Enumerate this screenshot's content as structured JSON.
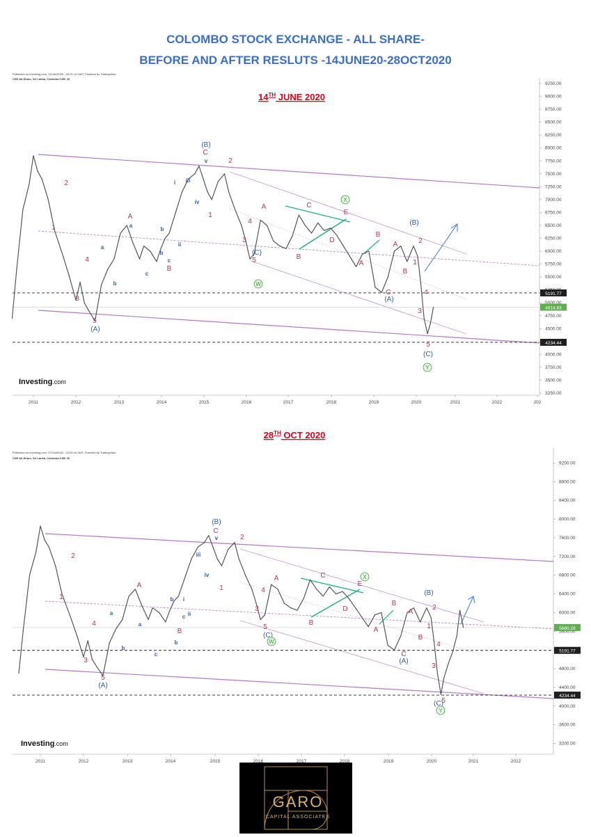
{
  "header": {
    "title_line1": "COLOMBO STOCK EXCHANGE - ALL SHARE-",
    "title_line2": "BEFORE AND AFTER RESLUTS -14JUNE20-28OCT2020"
  },
  "colors": {
    "title": "#3b6fc6",
    "date_label": "#e0001b",
    "channel": "#a55fc0",
    "wave_blue": "#2e5fa8",
    "wave_red": "#b3345a",
    "wave_green": "#3b9b3b",
    "triangle": "#1fae8a",
    "arrow": "#5b8fd0",
    "price": "#555555"
  },
  "logo": {
    "name": "GARO",
    "subtitle": "CAPITAL ASSOCIATES",
    "icon": "golden-spiral-icon"
  },
  "chart_data": [
    {
      "type": "line",
      "date_label": "14",
      "date_label_sup": "TH",
      "date_label_rest": " JUNE 2020",
      "published": "Published on Investing.com, 13/Jun/2020 - 20:31:14 GMT, Powered by TradingView",
      "instrument": "CSE All-Share, Sri Lanka, Colombo:CSE, W",
      "watermark": "Investing",
      "watermark_suffix": ".com",
      "x_ticks": [
        "2011",
        "2012",
        "2013",
        "2014",
        "2015",
        "2016",
        "2017",
        "2018",
        "2019",
        "2020",
        "2021",
        "2022",
        "202"
      ],
      "y_ticks": [
        "9250.00",
        "9000.00",
        "8750.00",
        "8500.00",
        "8250.00",
        "8000.00",
        "7750.00",
        "7500.00",
        "7250.00",
        "7000.00",
        "6750.00",
        "6500.00",
        "6250.00",
        "6000.00",
        "5750.00",
        "5500.00",
        "5250.00",
        "5000.00",
        "4750.00",
        "4500.00",
        "4250.00",
        "4000.00",
        "3750.00",
        "3500.00",
        "3250.00"
      ],
      "ylim": [
        3250,
        9250
      ],
      "price_labels": [
        {
          "text": "5191.77",
          "value": 5191.77,
          "style": "dark"
        },
        {
          "text": "4914.83",
          "value": 4914.83,
          "style": "green"
        },
        {
          "text": "4234.44",
          "value": 4234.44,
          "style": "dark"
        }
      ],
      "x": [
        2010.5,
        2010.6,
        2010.75,
        2010.9,
        2011.0,
        2011.1,
        2011.2,
        2011.35,
        2011.5,
        2011.7,
        2011.85,
        2012.0,
        2012.1,
        2012.2,
        2012.3,
        2012.45,
        2012.6,
        2012.75,
        2012.9,
        2013.05,
        2013.2,
        2013.35,
        2013.5,
        2013.6,
        2013.75,
        2013.9,
        2014.0,
        2014.1,
        2014.2,
        2014.35,
        2014.5,
        2014.65,
        2014.8,
        2014.9,
        2015.0,
        2015.1,
        2015.2,
        2015.35,
        2015.5,
        2015.6,
        2015.75,
        2015.9,
        2016.0,
        2016.1,
        2016.2,
        2016.35,
        2016.5,
        2016.65,
        2016.8,
        2016.95,
        2017.1,
        2017.25,
        2017.4,
        2017.55,
        2017.7,
        2017.85,
        2018.0,
        2018.15,
        2018.3,
        2018.45,
        2018.6,
        2018.75,
        2018.9,
        2019.05,
        2019.2,
        2019.35,
        2019.5,
        2019.65,
        2019.8,
        2019.95,
        2020.05,
        2020.12,
        2020.2,
        2020.28,
        2020.35,
        2020.42
      ],
      "y": [
        4700,
        5600,
        6800,
        7300,
        7850,
        7550,
        7400,
        7000,
        6400,
        5900,
        5500,
        5050,
        5400,
        5000,
        4850,
        4650,
        5350,
        5650,
        5850,
        6350,
        6500,
        6150,
        5850,
        6100,
        6000,
        5800,
        6050,
        6250,
        6350,
        6750,
        7150,
        7400,
        7500,
        7650,
        7400,
        7150,
        7000,
        7350,
        7500,
        7150,
        6800,
        6500,
        6200,
        5850,
        5950,
        6600,
        6500,
        6200,
        6100,
        6050,
        6300,
        6700,
        6500,
        6350,
        6550,
        6400,
        6450,
        6300,
        6100,
        5900,
        5700,
        5950,
        6000,
        5300,
        5200,
        5500,
        6000,
        6100,
        5800,
        6100,
        5900,
        5400,
        4700,
        4400,
        4600,
        4915
      ],
      "wave_labels": {
        "blue": [
          "(B)",
          "(A)",
          "(C)",
          "(A)",
          "(B)",
          "(C)",
          "v",
          "iii",
          "iv",
          "i",
          "ii",
          "a",
          "b",
          "c",
          "b",
          "a",
          "b",
          "c"
        ],
        "red": [
          "2",
          "1",
          "3",
          "4",
          "5",
          "C",
          "2",
          "1",
          "A",
          "4",
          "3",
          "5",
          "C",
          "E",
          "D",
          "B",
          "A",
          "B",
          "C",
          "A",
          "B",
          "1",
          "2",
          "3",
          "4",
          "5",
          "A",
          "B"
        ],
        "green": [
          "X",
          "W",
          "Y"
        ]
      }
    },
    {
      "type": "line",
      "date_label": "28",
      "date_label_sup": "TH",
      "date_label_rest": " OCT 2020",
      "published": "Published on Investing.com, 27/Oct/2020 - 23:09:34 GMT, Powered by TradingView",
      "instrument": "CSE All-Share, Sri Lanka, Colombo:CSE, W",
      "watermark": "Investing",
      "watermark_suffix": ".com",
      "x_ticks": [
        "2011",
        "2012",
        "2013",
        "2014",
        "2015",
        "2016",
        "2017",
        "2018",
        "2019",
        "2020",
        "2021",
        "2022"
      ],
      "y_ticks": [
        "9200.00",
        "8800.00",
        "8400.00",
        "8000.00",
        "7600.00",
        "7200.00",
        "6800.00",
        "6400.00",
        "6000.00",
        "5600.00",
        "5200.00",
        "4800.00",
        "4400.00",
        "4000.00",
        "3600.00",
        "3200.00"
      ],
      "ylim": [
        3000,
        9400
      ],
      "price_labels": [
        {
          "text": "5680.28",
          "value": 5680.28,
          "style": "green"
        },
        {
          "text": "5191.77",
          "value": 5191.77,
          "style": "dark"
        },
        {
          "text": "4234.44",
          "value": 4234.44,
          "style": "dark"
        }
      ],
      "x": [
        2010.5,
        2010.6,
        2010.75,
        2010.9,
        2011.0,
        2011.1,
        2011.2,
        2011.35,
        2011.5,
        2011.7,
        2011.85,
        2012.0,
        2012.1,
        2012.2,
        2012.3,
        2012.45,
        2012.6,
        2012.75,
        2012.9,
        2013.05,
        2013.2,
        2013.35,
        2013.5,
        2013.6,
        2013.75,
        2013.9,
        2014.0,
        2014.1,
        2014.2,
        2014.35,
        2014.5,
        2014.65,
        2014.8,
        2014.9,
        2015.0,
        2015.1,
        2015.2,
        2015.35,
        2015.5,
        2015.6,
        2015.75,
        2015.9,
        2016.0,
        2016.1,
        2016.2,
        2016.35,
        2016.5,
        2016.65,
        2016.8,
        2016.95,
        2017.1,
        2017.25,
        2017.4,
        2017.55,
        2017.7,
        2017.85,
        2018.0,
        2018.15,
        2018.3,
        2018.45,
        2018.6,
        2018.75,
        2018.9,
        2019.05,
        2019.2,
        2019.35,
        2019.5,
        2019.65,
        2019.8,
        2019.95,
        2020.05,
        2020.12,
        2020.2,
        2020.28,
        2020.35,
        2020.45,
        2020.55,
        2020.65,
        2020.72,
        2020.8
      ],
      "y": [
        4700,
        5600,
        6800,
        7300,
        7850,
        7550,
        7400,
        7000,
        6400,
        5900,
        5500,
        5050,
        5400,
        5000,
        4850,
        4650,
        5350,
        5650,
        5850,
        6350,
        6500,
        6150,
        5850,
        6100,
        6000,
        5800,
        6050,
        6250,
        6350,
        6750,
        7150,
        7400,
        7500,
        7650,
        7400,
        7150,
        7000,
        7350,
        7500,
        7150,
        6800,
        6500,
        6200,
        5850,
        5950,
        6600,
        6500,
        6200,
        6100,
        6050,
        6300,
        6700,
        6500,
        6350,
        6550,
        6400,
        6450,
        6300,
        6100,
        5900,
        5700,
        5950,
        6000,
        5300,
        5200,
        5500,
        6000,
        6100,
        5800,
        6100,
        5900,
        5400,
        4700,
        4250,
        4600,
        4900,
        5150,
        5500,
        6050,
        5680
      ],
      "wave_labels": {
        "blue": [
          "(B)",
          "(A)",
          "(C)",
          "(A)",
          "(B)",
          "(C)",
          "v",
          "iii",
          "iv",
          "i",
          "ii",
          "a",
          "b",
          "c",
          "b",
          "a",
          "b",
          "c"
        ],
        "red": [
          "2",
          "1",
          "3",
          "4",
          "5",
          "C",
          "2",
          "1",
          "A",
          "4",
          "3",
          "5",
          "C",
          "E",
          "D",
          "B",
          "A",
          "B",
          "C",
          "A",
          "B",
          "1",
          "2",
          "3",
          "4",
          "5",
          "A",
          "B"
        ],
        "green": [
          "X",
          "W",
          "Y"
        ]
      }
    }
  ]
}
